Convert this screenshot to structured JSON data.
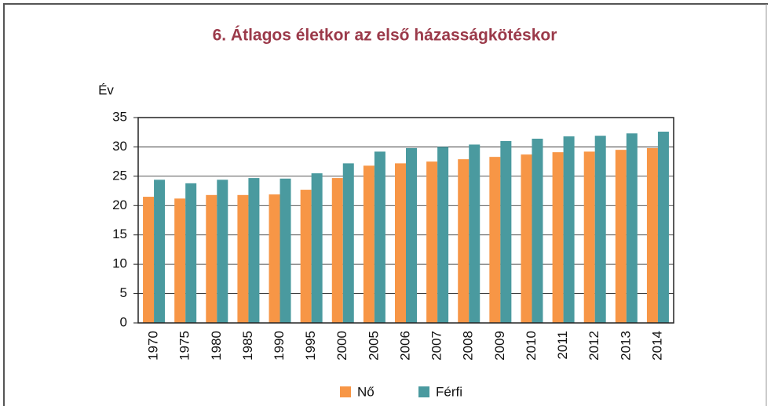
{
  "chart_data": {
    "type": "bar",
    "title": "6. Átlagos életkor az első házasságkötéskor",
    "y_label": "Év",
    "categories": [
      "1970",
      "1975",
      "1980",
      "1985",
      "1990",
      "1995",
      "2000",
      "2005",
      "2006",
      "2007",
      "2008",
      "2009",
      "2010",
      "2011",
      "2012",
      "2013",
      "2014"
    ],
    "series": [
      {
        "name": "Nő",
        "color": "#f79646",
        "values": [
          21.5,
          21.2,
          21.8,
          21.8,
          21.9,
          22.7,
          24.7,
          26.8,
          27.2,
          27.5,
          27.9,
          28.3,
          28.7,
          29.1,
          29.2,
          29.5,
          29.8
        ]
      },
      {
        "name": "Férfi",
        "color": "#4a9a9f",
        "values": [
          24.4,
          23.8,
          24.4,
          24.7,
          24.6,
          25.5,
          27.2,
          29.2,
          29.8,
          30.0,
          30.4,
          31.0,
          31.4,
          31.8,
          31.9,
          32.3,
          32.6
        ]
      }
    ],
    "ylim": [
      0,
      35
    ],
    "yticks": [
      0,
      5,
      10,
      15,
      20,
      25,
      30,
      35
    ],
    "grid": true
  }
}
